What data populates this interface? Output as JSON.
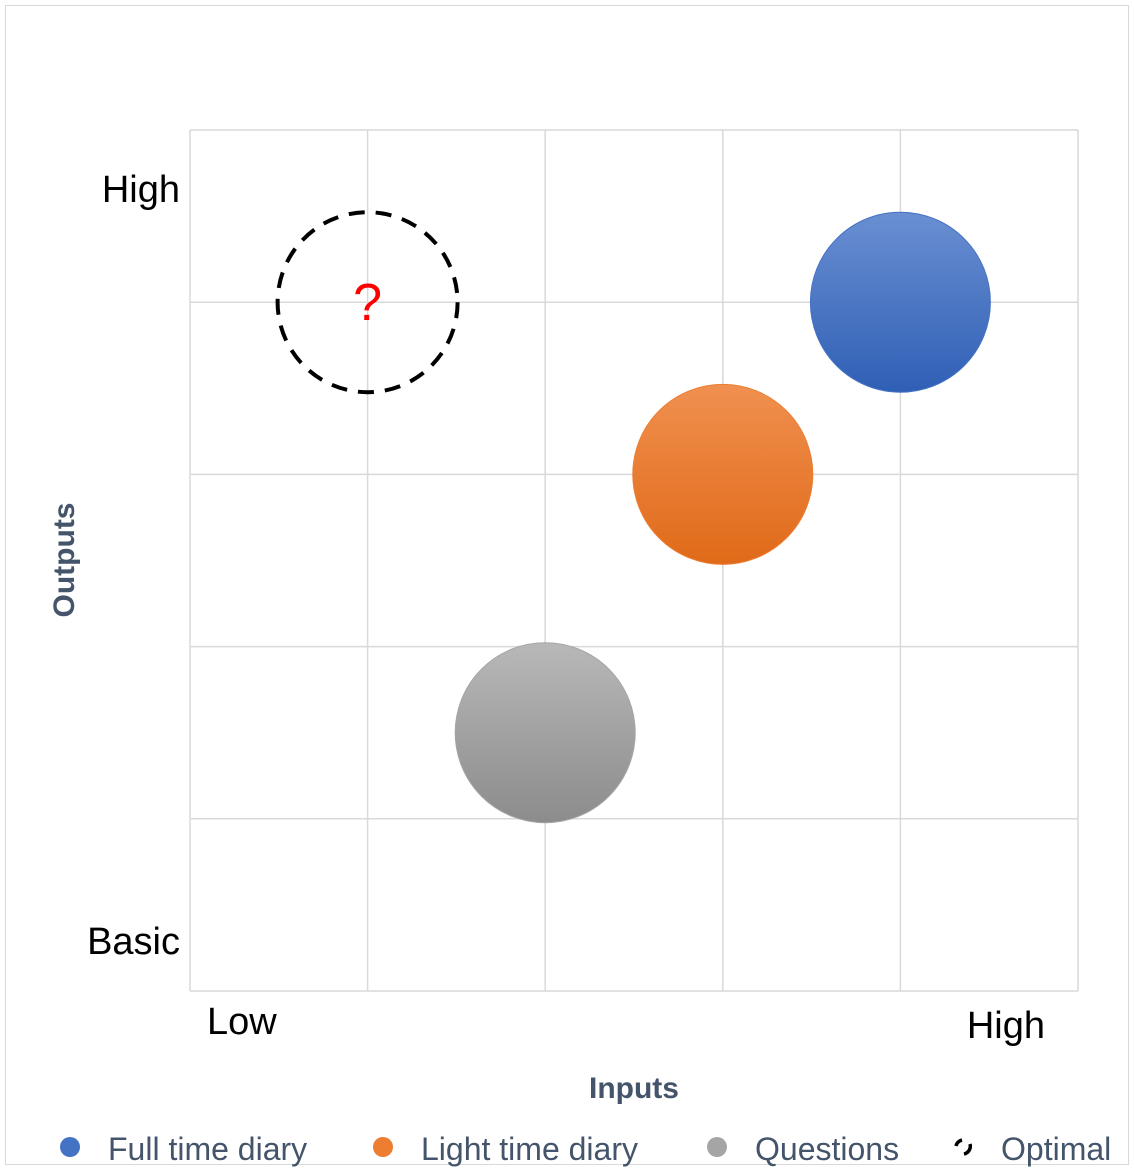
{
  "chart_data": {
    "type": "scatter",
    "title": "",
    "xlabel": "Inputs",
    "ylabel": "Outputs",
    "xlim": [
      0,
      5
    ],
    "ylim": [
      0,
      5
    ],
    "grid": true,
    "x_tick_labels": {
      "low": "Low",
      "high": "High"
    },
    "y_tick_labels": {
      "low": "Basic",
      "high": "High"
    },
    "legend_position": "bottom",
    "series": [
      {
        "name": "Full time diary",
        "x": 4,
        "y": 4,
        "color": "#4472C4",
        "style": "filled"
      },
      {
        "name": "Light time diary",
        "x": 3,
        "y": 3,
        "color": "#ED7D31",
        "style": "filled"
      },
      {
        "name": "Questions",
        "x": 2,
        "y": 1.5,
        "color": "#A5A5A5",
        "style": "filled"
      },
      {
        "name": "Optimal",
        "x": 1,
        "y": 4,
        "color": "#000000",
        "style": "dashed-outline",
        "label": "?",
        "label_color": "#FF0000"
      }
    ]
  }
}
